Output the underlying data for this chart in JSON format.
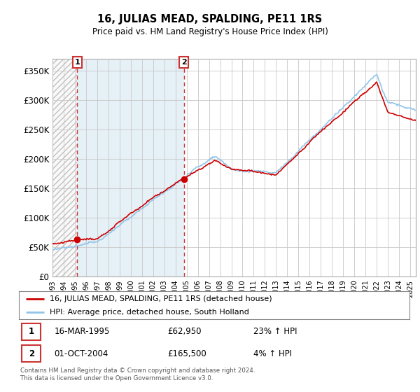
{
  "title": "16, JULIAS MEAD, SPALDING, PE11 1RS",
  "subtitle": "Price paid vs. HM Land Registry's House Price Index (HPI)",
  "ylim": [
    0,
    370000
  ],
  "xlim_start": 1993.0,
  "xlim_end": 2025.5,
  "purchase1_year": 1995.21,
  "purchase1_price": 62950,
  "purchase2_year": 2004.75,
  "purchase2_price": 165500,
  "legend_line1": "16, JULIAS MEAD, SPALDING, PE11 1RS (detached house)",
  "legend_line2": "HPI: Average price, detached house, South Holland",
  "annotation1_date": "16-MAR-1995",
  "annotation1_price": "£62,950",
  "annotation1_hpi": "23% ↑ HPI",
  "annotation2_date": "01-OCT-2004",
  "annotation2_price": "£165,500",
  "annotation2_hpi": "4% ↑ HPI",
  "footer": "Contains HM Land Registry data © Crown copyright and database right 2024.\nThis data is licensed under the Open Government Licence v3.0.",
  "hpi_color": "#92c5e8",
  "price_color": "#cc0000",
  "marker_color": "#cc0000",
  "grid_color": "#c8c8c8",
  "box_color": "#cc3333",
  "hatch_bg_color": "#e8e8e8",
  "blue_shade_color": "#daeaf5",
  "white_bg": "#ffffff"
}
